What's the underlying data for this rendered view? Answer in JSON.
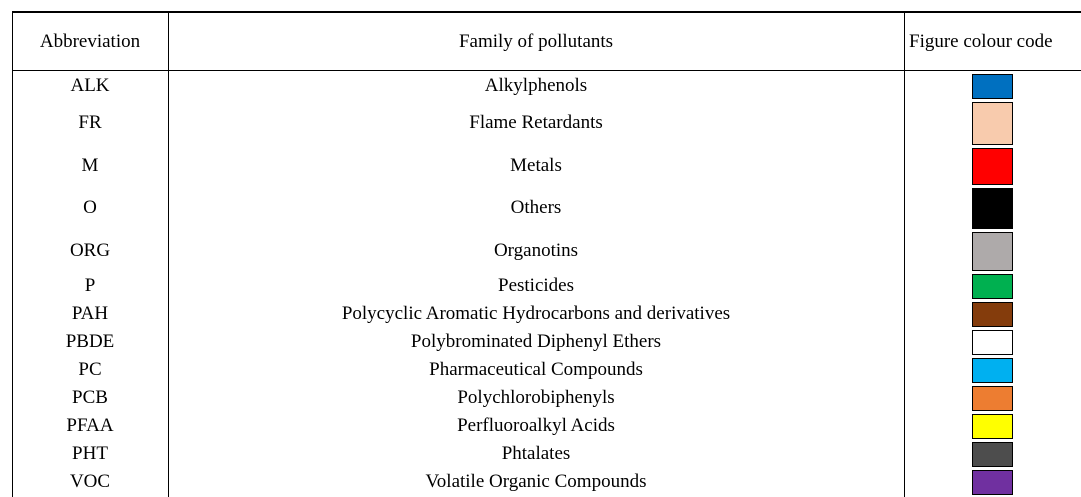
{
  "table": {
    "header": [
      "Abbreviation",
      "Family of pollutants",
      "Figure colour code"
    ],
    "rows": [
      {
        "abbreviation": "ALK",
        "family": "Alkylphenols",
        "color": "#0070c0"
      },
      {
        "abbreviation": "FR",
        "family": "Flame Retardants",
        "color": "#f8cbad"
      },
      {
        "abbreviation": "M",
        "family": "Metals",
        "color": "#ff0000"
      },
      {
        "abbreviation": "O",
        "family": "Others",
        "color": "#000000"
      },
      {
        "abbreviation": "ORG",
        "family": "Organotins",
        "color": "#aeaaaa"
      },
      {
        "abbreviation": "P",
        "family": "Pesticides",
        "color": "#00b050"
      },
      {
        "abbreviation": "PAH",
        "family": "Polycyclic Aromatic Hydrocarbons and derivatives",
        "color": "#843c0c"
      },
      {
        "abbreviation": "PBDE",
        "family": "Polybrominated Diphenyl Ethers",
        "color": "#ffffff"
      },
      {
        "abbreviation": "PC",
        "family": "Pharmaceutical Compounds",
        "color": "#00b0f0"
      },
      {
        "abbreviation": "PCB",
        "family": "Polychlorobiphenyls",
        "color": "#ed7d31"
      },
      {
        "abbreviation": "PFAA",
        "family": "Perfluoroalkyl Acids",
        "color": "#ffff00"
      },
      {
        "abbreviation": "PHT",
        "family": "Phtalates",
        "color": "#4d4d4d"
      },
      {
        "abbreviation": "VOC",
        "family": "Volatile Organic Compounds",
        "color": "#7030a0"
      }
    ]
  }
}
